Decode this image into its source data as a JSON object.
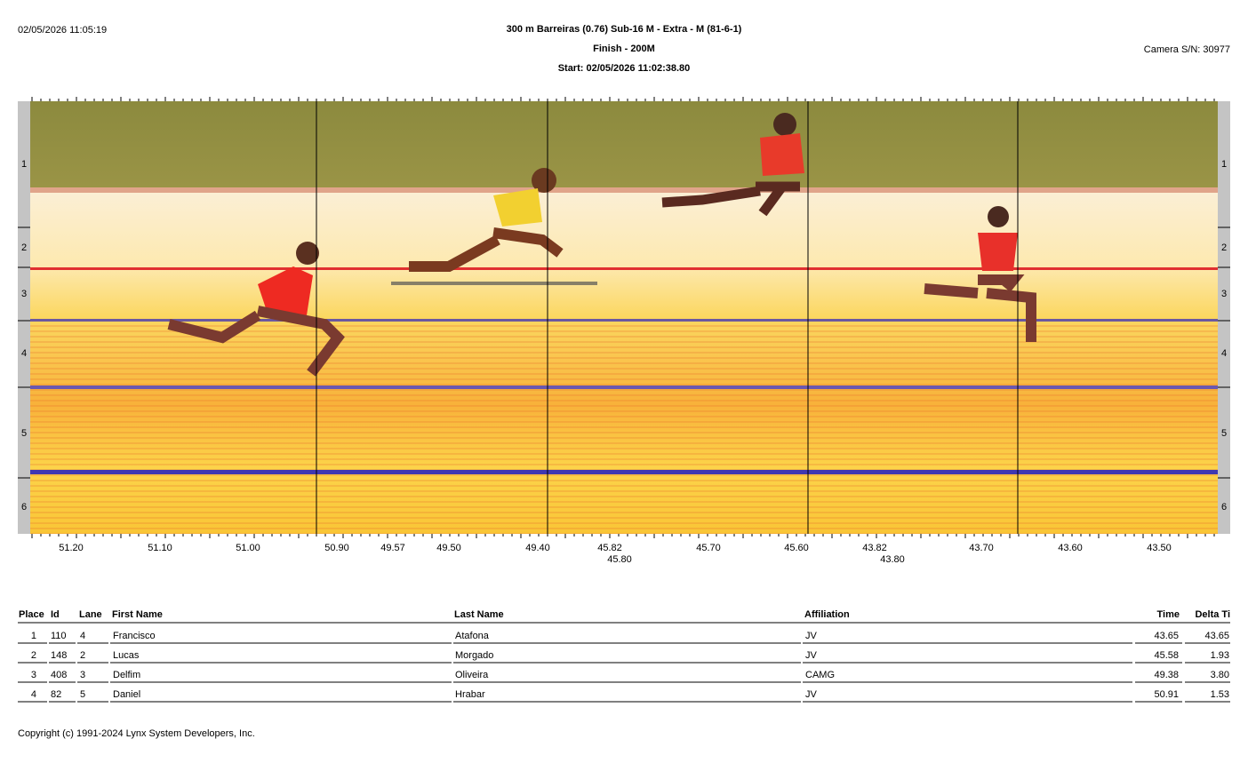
{
  "header": {
    "timestamp": "02/05/2026 11:05:19",
    "title": "300 m Barreiras (0.76)  Sub-16 M - Extra - M (81-6-1)",
    "subtitle": "Finish - 200M",
    "start": "Start: 02/05/2026 11:02:38.80",
    "camera": "Camera S/N: 30977"
  },
  "photo": {
    "lanes": [
      "1",
      "2",
      "3",
      "4",
      "5",
      "6"
    ],
    "time_labels": [
      "51.20",
      "51.10",
      "51.00",
      "50.90",
      "49.57",
      "49.50",
      "49.40",
      "45.82",
      "45.80",
      "45.70",
      "45.60",
      "43.82",
      "43.80",
      "43.70",
      "43.60",
      "43.50"
    ]
  },
  "table": {
    "columns": [
      "Place",
      "Id",
      "Lane",
      "First Name",
      "Last Name",
      "Affiliation",
      "Time",
      "Delta Ti"
    ],
    "rows": [
      [
        "1",
        "110",
        "4",
        "Francisco",
        "Atafona",
        "JV",
        "43.65",
        "43.65"
      ],
      [
        "2",
        "148",
        "2",
        "Lucas",
        "Morgado",
        "JV",
        "45.58",
        "1.93"
      ],
      [
        "3",
        "408",
        "3",
        "Delfim",
        "Oliveira",
        "CAMG",
        "49.38",
        "3.80"
      ],
      [
        "4",
        "82",
        "5",
        "Daniel",
        "Hrabar",
        "JV",
        "50.91",
        "1.53"
      ]
    ]
  },
  "footer": {
    "copyright": "Copyright (c) 1991-2024 Lynx System Developers, Inc."
  }
}
